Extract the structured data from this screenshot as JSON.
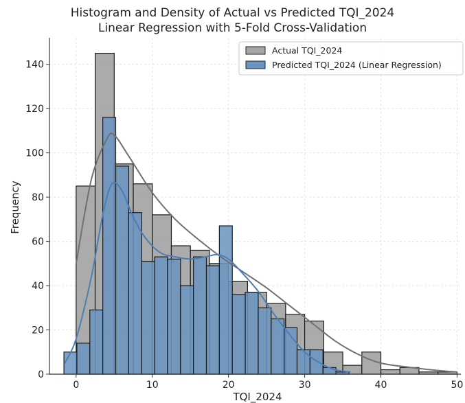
{
  "chart_data": {
    "type": "bar",
    "title_line1": "Histogram and Density of Actual vs Predicted TQI_2024",
    "title_line2": "Linear Regression with 5-Fold Cross-Validation",
    "xlabel": "TQI_2024",
    "ylabel": "Frequency",
    "xlim": [
      -3.5,
      50.5
    ],
    "ylim": [
      0,
      152
    ],
    "xticks": [
      0,
      10,
      20,
      30,
      40,
      50
    ],
    "yticks": [
      0,
      20,
      40,
      60,
      80,
      100,
      120,
      140
    ],
    "grid": true,
    "legend_position": "top-right",
    "series": [
      {
        "name": "Actual TQI_2024",
        "color": "#a6a6a6",
        "line_color": "#707070",
        "bins": [
          {
            "x0": 0.0,
            "x1": 2.5,
            "count": 85
          },
          {
            "x0": 2.5,
            "x1": 5.0,
            "count": 145
          },
          {
            "x0": 5.0,
            "x1": 7.5,
            "count": 95
          },
          {
            "x0": 7.5,
            "x1": 10.0,
            "count": 86
          },
          {
            "x0": 10.0,
            "x1": 12.5,
            "count": 72
          },
          {
            "x0": 12.5,
            "x1": 15.0,
            "count": 58
          },
          {
            "x0": 15.0,
            "x1": 17.5,
            "count": 56
          },
          {
            "x0": 17.5,
            "x1": 20.0,
            "count": 50
          },
          {
            "x0": 20.0,
            "x1": 22.5,
            "count": 42
          },
          {
            "x0": 22.5,
            "x1": 25.0,
            "count": 37
          },
          {
            "x0": 25.0,
            "x1": 27.5,
            "count": 32
          },
          {
            "x0": 27.5,
            "x1": 30.0,
            "count": 27
          },
          {
            "x0": 30.0,
            "x1": 32.5,
            "count": 24
          },
          {
            "x0": 32.5,
            "x1": 35.0,
            "count": 10
          },
          {
            "x0": 35.0,
            "x1": 37.5,
            "count": 4
          },
          {
            "x0": 37.5,
            "x1": 40.0,
            "count": 10
          },
          {
            "x0": 40.0,
            "x1": 42.5,
            "count": 2
          },
          {
            "x0": 42.5,
            "x1": 45.0,
            "count": 3
          },
          {
            "x0": 45.0,
            "x1": 47.5,
            "count": 1
          },
          {
            "x0": 47.5,
            "x1": 50.0,
            "count": 1
          }
        ],
        "density": [
          [
            0,
            50
          ],
          [
            2,
            88
          ],
          [
            4,
            106
          ],
          [
            5,
            108
          ],
          [
            7,
            98
          ],
          [
            10,
            82
          ],
          [
            13,
            70
          ],
          [
            16,
            61
          ],
          [
            19,
            53
          ],
          [
            22,
            46
          ],
          [
            25,
            39
          ],
          [
            28,
            31
          ],
          [
            31,
            23
          ],
          [
            34,
            15
          ],
          [
            37,
            9
          ],
          [
            40,
            5
          ],
          [
            44,
            3
          ],
          [
            48,
            1.5
          ],
          [
            50,
            1
          ]
        ]
      },
      {
        "name": "Predicted TQI_2024 (Linear Regression)",
        "color": "#6a93bf",
        "line_color": "#4a7eb5",
        "bins": [
          {
            "x0": -1.6,
            "x1": 0.1,
            "count": 10
          },
          {
            "x0": 0.1,
            "x1": 1.8,
            "count": 14
          },
          {
            "x0": 1.8,
            "x1": 3.5,
            "count": 29
          },
          {
            "x0": 3.5,
            "x1": 5.2,
            "count": 116
          },
          {
            "x0": 5.2,
            "x1": 6.9,
            "count": 94
          },
          {
            "x0": 6.9,
            "x1": 8.6,
            "count": 73
          },
          {
            "x0": 8.6,
            "x1": 10.3,
            "count": 51
          },
          {
            "x0": 10.3,
            "x1": 12.0,
            "count": 53
          },
          {
            "x0": 12.0,
            "x1": 13.7,
            "count": 52
          },
          {
            "x0": 13.7,
            "x1": 15.4,
            "count": 40
          },
          {
            "x0": 15.4,
            "x1": 17.1,
            "count": 53
          },
          {
            "x0": 17.1,
            "x1": 18.8,
            "count": 49
          },
          {
            "x0": 18.8,
            "x1": 20.5,
            "count": 67
          },
          {
            "x0": 20.5,
            "x1": 22.2,
            "count": 36
          },
          {
            "x0": 22.2,
            "x1": 23.9,
            "count": 37
          },
          {
            "x0": 23.9,
            "x1": 25.6,
            "count": 30
          },
          {
            "x0": 25.6,
            "x1": 27.3,
            "count": 25
          },
          {
            "x0": 27.3,
            "x1": 29.0,
            "count": 21
          },
          {
            "x0": 29.0,
            "x1": 30.7,
            "count": 11
          },
          {
            "x0": 30.7,
            "x1": 32.4,
            "count": 11
          },
          {
            "x0": 32.4,
            "x1": 34.1,
            "count": 3
          },
          {
            "x0": 34.1,
            "x1": 35.8,
            "count": 1
          }
        ],
        "density": [
          [
            -1.5,
            5
          ],
          [
            0,
            16
          ],
          [
            2,
            44
          ],
          [
            3.5,
            72
          ],
          [
            4.7,
            86
          ],
          [
            6,
            83
          ],
          [
            7.5,
            71
          ],
          [
            9,
            62
          ],
          [
            11,
            55
          ],
          [
            13,
            53
          ],
          [
            15,
            52
          ],
          [
            17,
            53
          ],
          [
            18.5,
            54
          ],
          [
            20,
            52
          ],
          [
            22,
            45
          ],
          [
            24,
            37
          ],
          [
            26,
            27
          ],
          [
            28,
            18
          ],
          [
            30,
            10
          ],
          [
            32,
            5
          ],
          [
            34,
            2
          ],
          [
            36,
            1
          ]
        ]
      }
    ]
  }
}
